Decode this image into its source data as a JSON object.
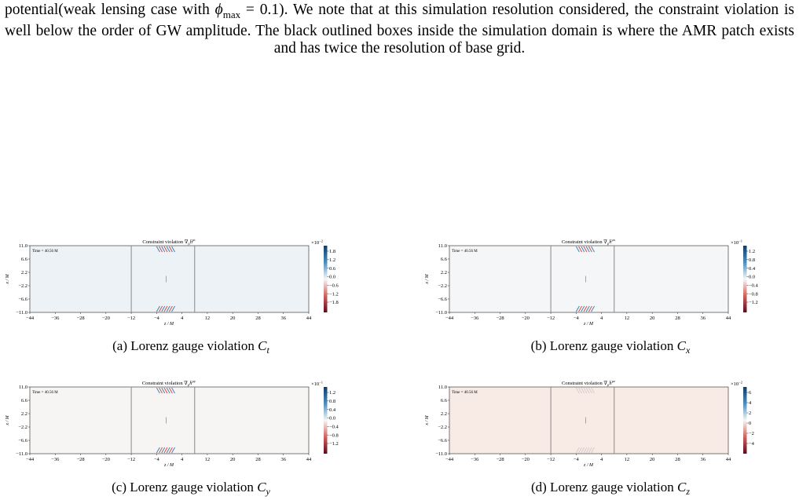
{
  "paragraph": {
    "before": "potential(weak lensing case with ",
    "symbol": "ϕ",
    "subscript": "max",
    "after": " = 0.1). We note that at this simulation resolution considered, the constraint violation is well below the order of GW amplitude. The black outlined boxes inside the simulation domain is where the AMR patch exists and has twice the resolution of base grid."
  },
  "figures": [
    {
      "title_prefix": "Constraint violation ∇",
      "title_sub": "μ",
      "title_mid": "h̄",
      "title_sup": "μt",
      "time_label": "Time = 40.56 M",
      "xlabel": "z / M",
      "ylabel": "x / M",
      "xticks": [
        "−44",
        "−36",
        "−28",
        "−20",
        "−12",
        "−4",
        "4",
        "12",
        "20",
        "28",
        "36",
        "44"
      ],
      "yticks": [
        "11.0",
        "6.6",
        "2.2",
        "−2.2",
        "−6.6",
        "−11.0"
      ],
      "colorbar_scale": "×10",
      "colorbar_exponent": "−2",
      "colorbar_ticks": [
        "1.8",
        "1.2",
        "0.6",
        "0.0",
        "−0.6",
        "−1.2",
        "−1.8"
      ],
      "caption": {
        "text": "(a) Lorenz gauge violation ",
        "symbol": "C",
        "subscript": "t"
      }
    },
    {
      "title_prefix": "Constraint violation ∇",
      "title_sub": "μ",
      "title_mid": "h̄",
      "title_sup": "μx",
      "time_label": "Time = 40.56 M",
      "xlabel": "z / M",
      "ylabel": "x / M",
      "xticks": [
        "−44",
        "−36",
        "−28",
        "−20",
        "−12",
        "−4",
        "4",
        "12",
        "20",
        "28",
        "36",
        "44"
      ],
      "yticks": [
        "11.0",
        "6.6",
        "2.2",
        "−2.2",
        "−6.6",
        "−11.0"
      ],
      "colorbar_scale": "×10",
      "colorbar_exponent": "−1",
      "colorbar_ticks": [
        "1.2",
        "0.8",
        "0.4",
        "0.0",
        "−0.4",
        "−0.8",
        "−1.2"
      ],
      "caption": {
        "text": "(b) Lorenz gauge violation ",
        "symbol": "C",
        "subscript": "x"
      }
    },
    {
      "title_prefix": "Constraint violation ∇",
      "title_sub": "μ",
      "title_mid": "h̄",
      "title_sup": "μy",
      "time_label": "Time = 40.56 M",
      "xlabel": "z / M",
      "ylabel": "x / M",
      "xticks": [
        "−44",
        "−36",
        "−28",
        "−20",
        "−12",
        "−4",
        "4",
        "12",
        "20",
        "28",
        "36",
        "44"
      ],
      "yticks": [
        "11.0",
        "6.6",
        "2.2",
        "−2.2",
        "−6.6",
        "−11.0"
      ],
      "colorbar_scale": "×10",
      "colorbar_exponent": "−1",
      "colorbar_ticks": [
        "1.2",
        "0.8",
        "0.4",
        "0.0",
        "−0.4",
        "−0.8",
        "−1.2"
      ],
      "caption": {
        "text": "(c) Lorenz gauge violation ",
        "symbol": "C",
        "subscript": "y"
      }
    },
    {
      "title_prefix": "Constraint violation ∇",
      "title_sub": "μ",
      "title_mid": "h̄",
      "title_sup": "μz",
      "time_label": "Time = 40.56 M",
      "xlabel": "z / M",
      "ylabel": "x / M",
      "xticks": [
        "−44",
        "−36",
        "−28",
        "−20",
        "−12",
        "−4",
        "4",
        "12",
        "20",
        "28",
        "36",
        "44"
      ],
      "yticks": [
        "11.0",
        "6.6",
        "2.2",
        "−2.2",
        "−6.6",
        "−11.0"
      ],
      "colorbar_scale": "×10",
      "colorbar_exponent": "−2",
      "colorbar_ticks": [
        "6",
        "4",
        "2",
        "0",
        "−2",
        "−4"
      ],
      "caption": {
        "text": "(d) Lorenz gauge violation ",
        "symbol": "C",
        "subscript": "z"
      }
    }
  ]
}
